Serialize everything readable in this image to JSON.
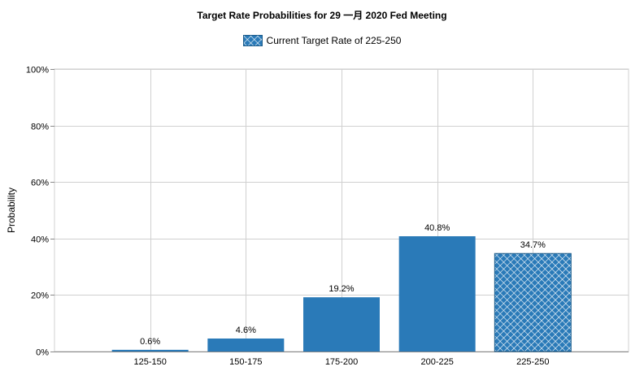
{
  "chart_data": {
    "type": "bar",
    "title": "Target Rate Probabilities for 29  一月  2020  Fed Meeting",
    "legend": {
      "label": "Current Target Rate of 225-250",
      "placement": "top-center"
    },
    "ylabel": "Probability",
    "xlabel": "",
    "ylim": [
      0,
      100
    ],
    "yticks": [
      "0%",
      "20%",
      "40%",
      "60%",
      "80%",
      "100%"
    ],
    "ytick_values": [
      0,
      20,
      40,
      60,
      80,
      100
    ],
    "categories": [
      "125-150",
      "150-175",
      "175-200",
      "200-225",
      "225-250"
    ],
    "values": [
      0.6,
      4.6,
      19.2,
      40.8,
      34.7
    ],
    "data_labels": [
      "0.6%",
      "4.6%",
      "19.2%",
      "40.8%",
      "34.7%"
    ],
    "highlight_index": 4,
    "grid": true,
    "colors": {
      "bar": "#2a7ab8",
      "hatch_bg": "#2a7ab8",
      "hatch_line": "#ffffff",
      "grid": "#d0d0d0",
      "axis": "#888888"
    }
  }
}
